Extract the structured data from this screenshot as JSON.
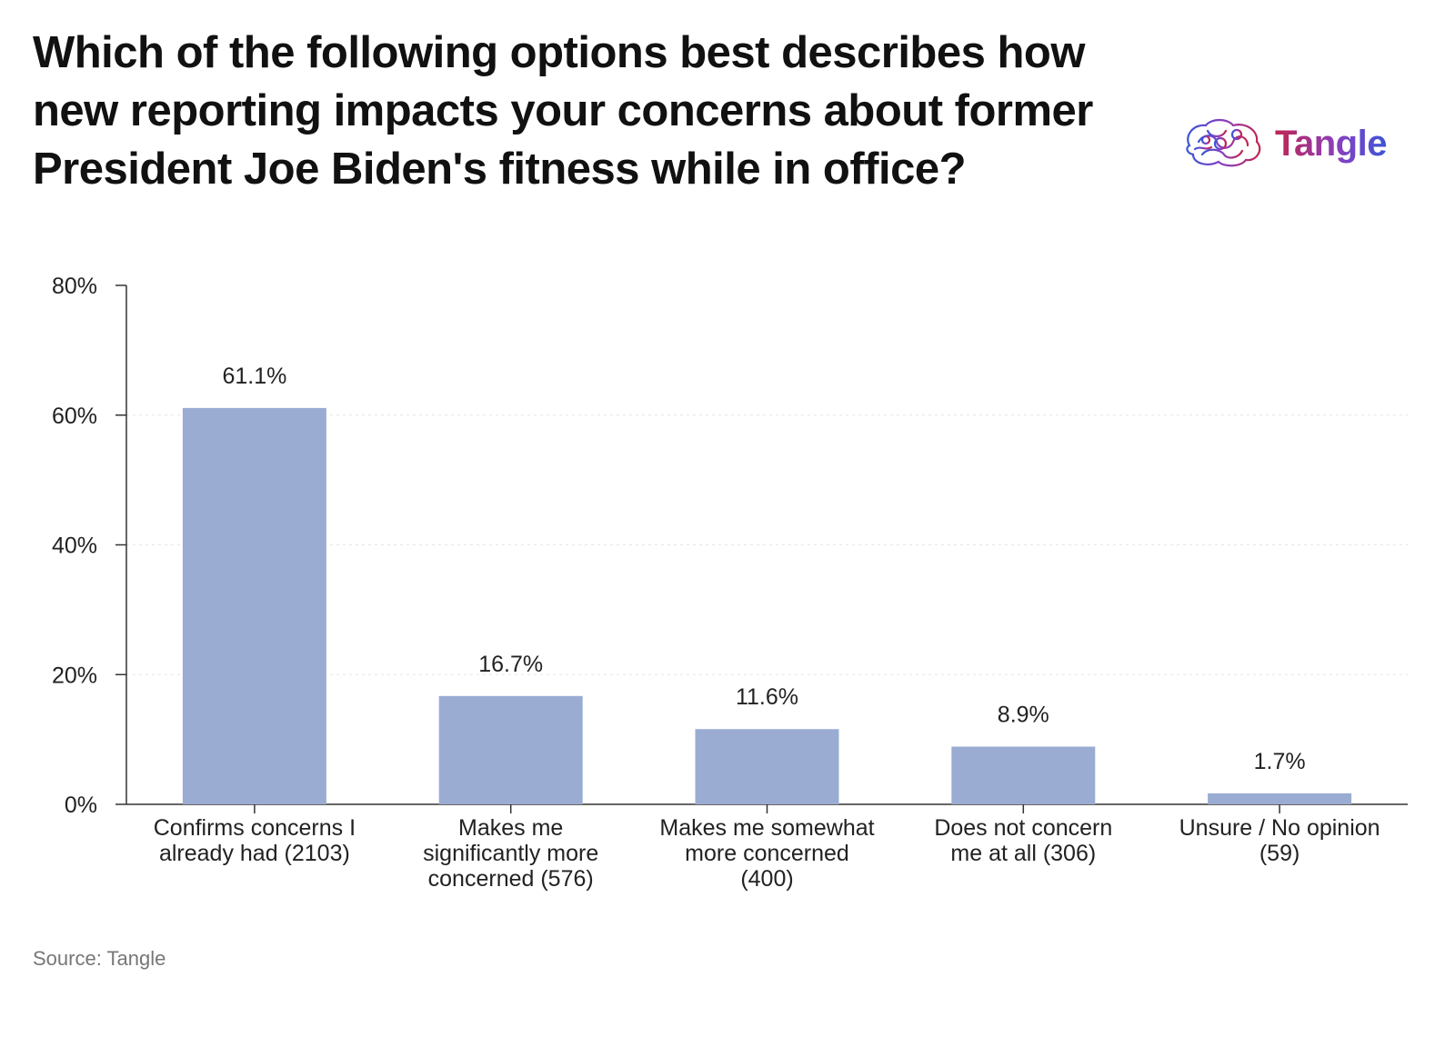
{
  "brand": {
    "name": "Tangle",
    "colors": {
      "start": "#c0254f",
      "mid": "#8a3fbf",
      "end": "#3b55d8"
    }
  },
  "source": "Source: Tangle",
  "chart_data": {
    "type": "bar",
    "title": "Which of the following options best describes how new reporting impacts your concerns about former President Joe Biden's fitness while in office?",
    "categories": [
      "Confirms concerns I already had (2103)",
      "Makes me significantly more concerned (576)",
      "Makes me somewhat more concerned (400)",
      "Does not concern me at all (306)",
      "Unsure / No opinion (59)"
    ],
    "category_lines": [
      [
        "Confirms concerns I",
        "already had (2103)"
      ],
      [
        "Makes me",
        "significantly more",
        "concerned (576)"
      ],
      [
        "Makes me somewhat",
        "more concerned",
        "(400)"
      ],
      [
        "Does not concern",
        "me at all (306)"
      ],
      [
        "Unsure / No opinion",
        "(59)"
      ]
    ],
    "values": [
      61.1,
      16.7,
      11.6,
      8.9,
      1.7
    ],
    "value_labels": [
      "61.1%",
      "16.7%",
      "11.6%",
      "8.9%",
      "1.7%"
    ],
    "xlabel": "",
    "ylabel": "",
    "ylim": [
      0,
      80
    ],
    "yticks": [
      0,
      20,
      40,
      60,
      80
    ],
    "ytick_labels": [
      "0%",
      "20%",
      "40%",
      "60%",
      "80%"
    ],
    "bar_color": "#9bacd3",
    "grid": true,
    "legend": false
  }
}
